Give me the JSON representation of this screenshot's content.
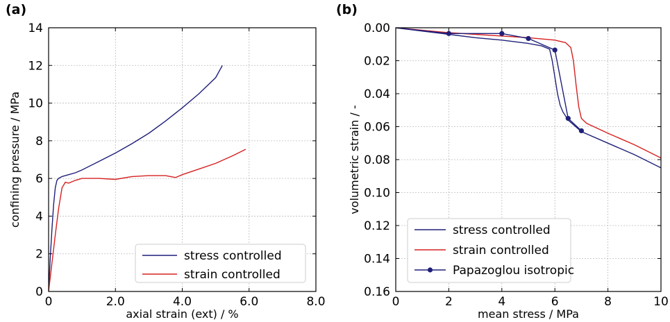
{
  "chart_data": [
    {
      "panel_label": "(a)",
      "type": "line",
      "xlabel": "axial strain (ext) / %",
      "ylabel": "confining pressure / MPa",
      "xlim": [
        0,
        8
      ],
      "ylim": [
        0,
        14
      ],
      "xticks": [
        0,
        2,
        4,
        6,
        8
      ],
      "xtick_labels": [
        "0",
        "2.0",
        "4.0",
        "6.0",
        "8.0"
      ],
      "yticks": [
        0,
        2,
        4,
        6,
        8,
        10,
        12,
        14
      ],
      "ytick_labels": [
        "0",
        "2",
        "4",
        "6",
        "8",
        "10",
        "12",
        "14"
      ],
      "grid": true,
      "legend_position": "lower right",
      "series": [
        {
          "name": "stress controlled",
          "color": "#1f1f7a",
          "marker": false,
          "x": [
            0,
            0.05,
            0.1,
            0.15,
            0.2,
            0.25,
            0.3,
            0.4,
            0.6,
            0.8,
            1.0,
            1.5,
            2.0,
            2.5,
            3.0,
            3.5,
            4.0,
            4.5,
            5.0,
            5.2
          ],
          "y": [
            0,
            1.8,
            3.3,
            4.6,
            5.5,
            5.9,
            6.0,
            6.1,
            6.2,
            6.3,
            6.45,
            6.9,
            7.35,
            7.85,
            8.4,
            9.05,
            9.75,
            10.5,
            11.35,
            12.0
          ]
        },
        {
          "name": "strain controlled",
          "color": "#d62020",
          "marker": false,
          "x": [
            0,
            0.1,
            0.2,
            0.3,
            0.4,
            0.5,
            0.6,
            0.8,
            1.0,
            1.5,
            2.0,
            2.5,
            3.0,
            3.5,
            3.8,
            4.0,
            4.5,
            5.0,
            5.5,
            5.9
          ],
          "y": [
            0,
            1.5,
            3.0,
            4.4,
            5.5,
            5.8,
            5.75,
            5.9,
            6.0,
            6.0,
            5.95,
            6.1,
            6.15,
            6.15,
            6.05,
            6.2,
            6.5,
            6.8,
            7.2,
            7.55
          ]
        }
      ]
    },
    {
      "panel_label": "(b)",
      "type": "line",
      "xlabel": "mean stress / MPa",
      "ylabel": "volumetric strain / -",
      "xlim": [
        0,
        10
      ],
      "ylim": [
        0.16,
        0
      ],
      "y_inverted": true,
      "xticks": [
        0,
        2,
        4,
        6,
        8,
        10
      ],
      "xtick_labels": [
        "0",
        "2",
        "4",
        "6",
        "8",
        "10"
      ],
      "yticks": [
        0,
        0.02,
        0.04,
        0.06,
        0.08,
        0.1,
        0.12,
        0.14,
        0.16
      ],
      "ytick_labels": [
        "0.00",
        "0.02",
        "0.04",
        "0.06",
        "0.08",
        "0.10",
        "0.12",
        "0.14",
        "0.16"
      ],
      "grid": true,
      "legend_position": "lower left",
      "series": [
        {
          "name": "stress controlled",
          "color": "#1f1f7a",
          "marker": false,
          "x": [
            0,
            1,
            2,
            3,
            4,
            5,
            5.5,
            5.8,
            5.9,
            6.0,
            6.1,
            6.2,
            6.3,
            6.5,
            7.0,
            8,
            9,
            10
          ],
          "y": [
            0,
            0.002,
            0.004,
            0.006,
            0.0075,
            0.0095,
            0.011,
            0.013,
            0.02,
            0.03,
            0.04,
            0.047,
            0.051,
            0.056,
            0.063,
            0.07,
            0.077,
            0.085
          ]
        },
        {
          "name": "strain controlled",
          "color": "#d62020",
          "marker": false,
          "x": [
            0,
            1,
            2,
            3,
            4,
            5,
            6,
            6.4,
            6.6,
            6.7,
            6.8,
            6.9,
            7.0,
            7.2,
            8,
            9,
            10
          ],
          "y": [
            0,
            0.0015,
            0.003,
            0.004,
            0.005,
            0.006,
            0.0075,
            0.009,
            0.012,
            0.02,
            0.035,
            0.048,
            0.055,
            0.058,
            0.064,
            0.071,
            0.079
          ]
        },
        {
          "name": "Papazoglou isotropic",
          "color": "#1f1f7a",
          "marker": true,
          "x": [
            0,
            2,
            4,
            5,
            6,
            6.5,
            7.0
          ],
          "y": [
            0,
            0.0035,
            0.0035,
            0.0065,
            0.0135,
            0.055,
            0.0625
          ]
        }
      ]
    }
  ]
}
